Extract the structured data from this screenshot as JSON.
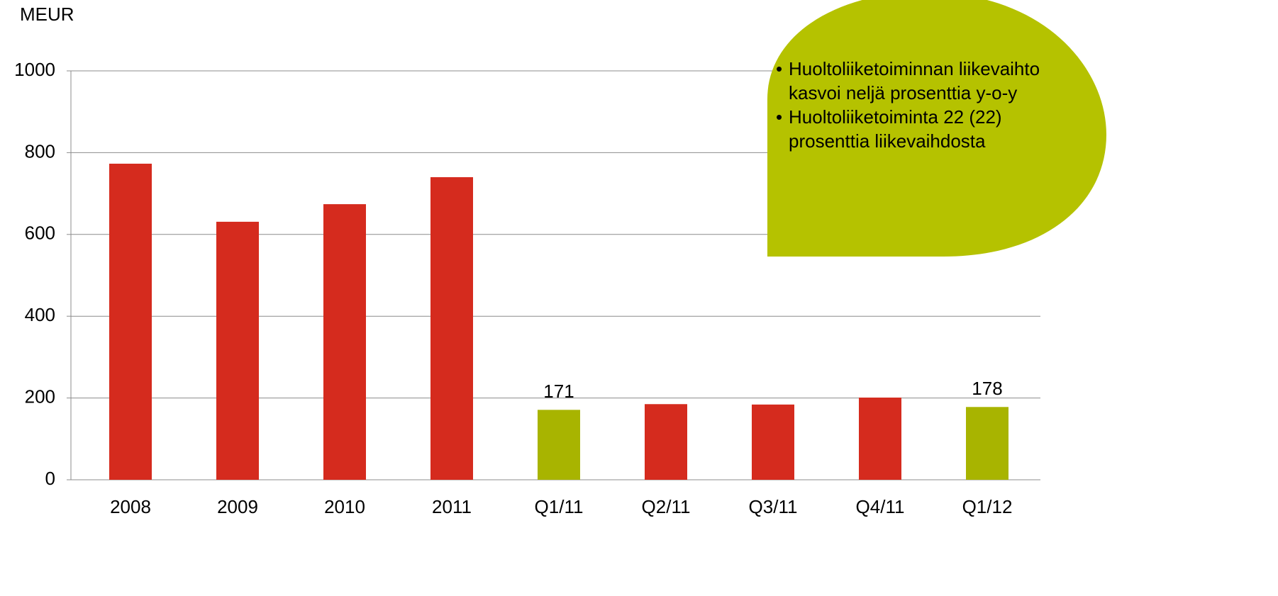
{
  "chart_data": {
    "type": "bar",
    "ylabel": "MEUR",
    "categories": [
      "2008",
      "2009",
      "2010",
      "2011",
      "Q1/11",
      "Q2/11",
      "Q3/11",
      "Q4/11",
      "Q1/12"
    ],
    "values": [
      773,
      631,
      674,
      740,
      171,
      185,
      184,
      201,
      178
    ],
    "value_labels": [
      null,
      null,
      null,
      null,
      "171",
      null,
      null,
      null,
      "178"
    ],
    "colors": [
      "#d52b1e",
      "#d52b1e",
      "#d52b1e",
      "#d52b1e",
      "#a8b400",
      "#d52b1e",
      "#d52b1e",
      "#d52b1e",
      "#a8b400"
    ],
    "ylim": [
      0,
      1000
    ],
    "yticks": [
      0,
      200,
      400,
      600,
      800,
      1000
    ],
    "grid": true,
    "annotations": [
      "Huoltoliiketoiminnan liikevaihto kasvoi neljä prosenttia y-o-y",
      "Huoltoliiketoiminta 22 (22) prosenttia liikevaihdosta"
    ]
  }
}
